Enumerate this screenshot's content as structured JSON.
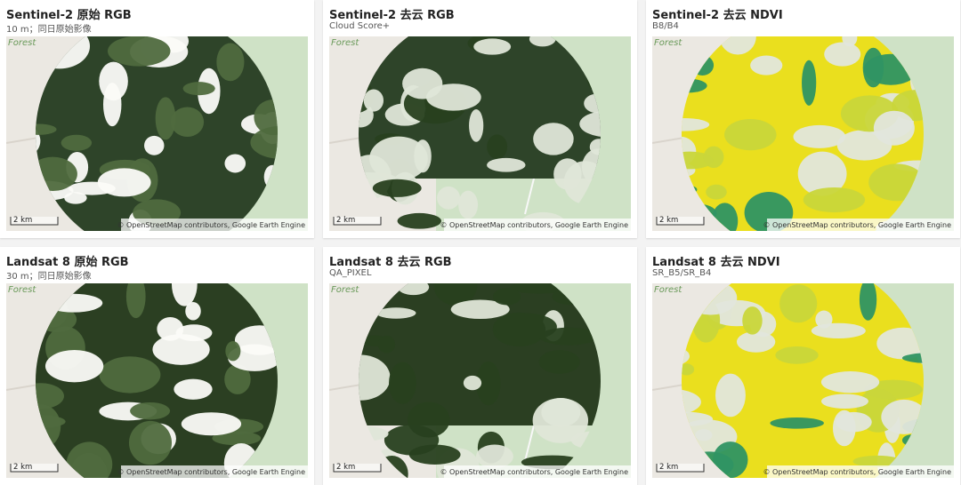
{
  "panels": [
    {
      "title": "Sentinel-2 原始 RGB",
      "subtitle": "10 m；同日原始影像",
      "map_label": "Forest",
      "scale": "2 km",
      "attribution": "© OpenStreetMap contributors, Google Earth Engine"
    },
    {
      "title": "Sentinel-2 去云 RGB",
      "subtitle": "Cloud Score+",
      "map_label": "Forest",
      "scale": "2 km",
      "attribution": "© OpenStreetMap contributors, Google Earth Engine"
    },
    {
      "title": "Sentinel-2 去云 NDVI",
      "subtitle": "B8/B4",
      "map_label": "Forest",
      "scale": "2 km",
      "attribution": "© OpenStreetMap contributors, Google Earth Engine"
    },
    {
      "title": "Landsat 8 原始 RGB",
      "subtitle": "30 m；同日原始影像",
      "map_label": "Forest",
      "scale": "2 km",
      "attribution": "© OpenStreetMap contributors, Google Earth Engine"
    },
    {
      "title": "Landsat 8 去云 RGB",
      "subtitle": "QA_PIXEL",
      "map_label": "Forest",
      "scale": "2 km",
      "attribution": "© OpenStreetMap contributors, Google Earth Engine"
    },
    {
      "title": "Landsat 8 去云 NDVI",
      "subtitle": "SR_B5/SR_B4",
      "map_label": "Forest",
      "scale": "2 km",
      "attribution": "© OpenStreetMap contributors, Google Earth Engine"
    }
  ]
}
